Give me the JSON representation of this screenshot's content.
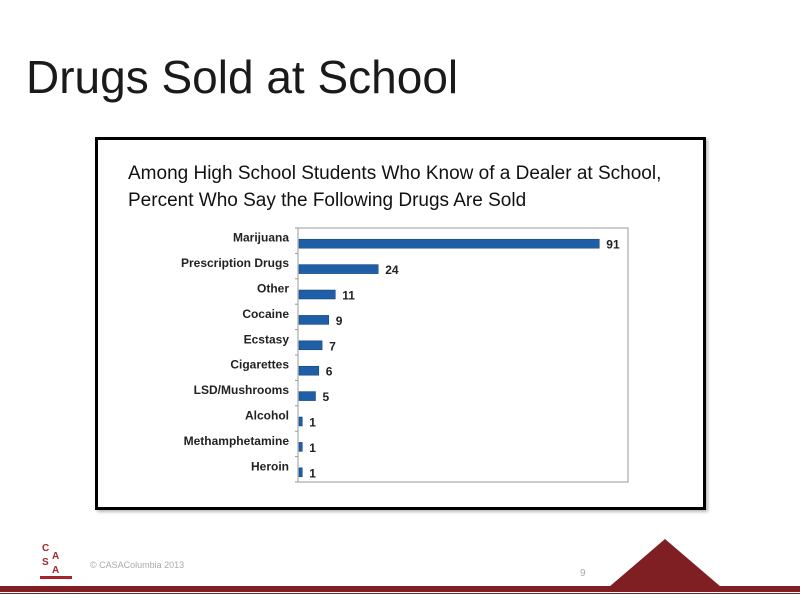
{
  "slide": {
    "title": "Drugs Sold at School",
    "copyright": "© CASAColumbia 2013",
    "page_number": "9",
    "logo_text": "CASA",
    "accent_color": "#7f1f24"
  },
  "chart_data": {
    "type": "bar",
    "orientation": "horizontal",
    "title": "Among High School Students Who Know of a Dealer at School, Percent Who Say the Following Drugs Are Sold",
    "categories": [
      "Marijuana",
      "Prescription Drugs",
      "Other",
      "Cocaine",
      "Ecstasy",
      "Cigarettes",
      "LSD/Mushrooms",
      "Alcohol",
      "Methamphetamine",
      "Heroin"
    ],
    "values": [
      91,
      24,
      11,
      9,
      7,
      6,
      5,
      1,
      1,
      1
    ],
    "xlim": [
      0,
      100
    ],
    "bar_color": "#1f5fa8",
    "grid": false,
    "legend": "none"
  }
}
